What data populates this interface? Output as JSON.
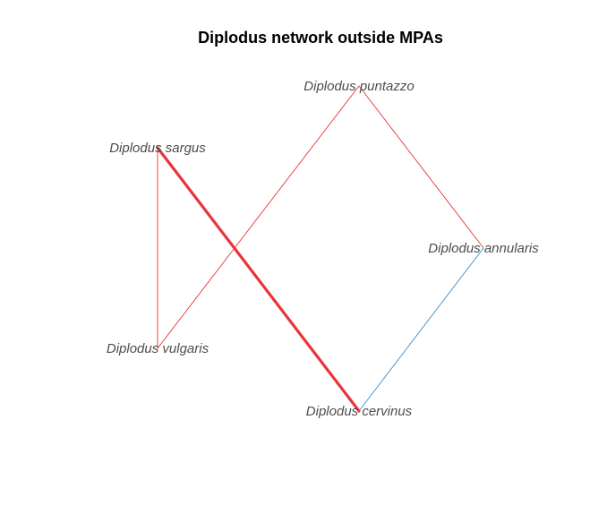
{
  "title": "Diplodus network outside MPAs",
  "colors": {
    "positive": "#e8343a",
    "negative": "#3a8fc7",
    "label": "#4d4d4d",
    "title": "#000000"
  },
  "nodes": [
    {
      "id": "puntazzo",
      "label": "Diplodus puntazzo"
    },
    {
      "id": "sargus",
      "label": "Diplodus sargus"
    },
    {
      "id": "annularis",
      "label": "Diplodus annularis"
    },
    {
      "id": "vulgaris",
      "label": "Diplodus vulgaris"
    },
    {
      "id": "cervinus",
      "label": "Diplodus cervinus"
    }
  ],
  "edges": [
    {
      "from": "sargus",
      "to": "cervinus",
      "sign": "positive",
      "strength": "strong"
    },
    {
      "from": "sargus",
      "to": "vulgaris",
      "sign": "positive",
      "strength": "weak"
    },
    {
      "from": "vulgaris",
      "to": "puntazzo",
      "sign": "positive",
      "strength": "weak"
    },
    {
      "from": "puntazzo",
      "to": "annularis",
      "sign": "positive",
      "strength": "weak"
    },
    {
      "from": "annularis",
      "to": "cervinus",
      "sign": "negative",
      "strength": "weak"
    }
  ]
}
